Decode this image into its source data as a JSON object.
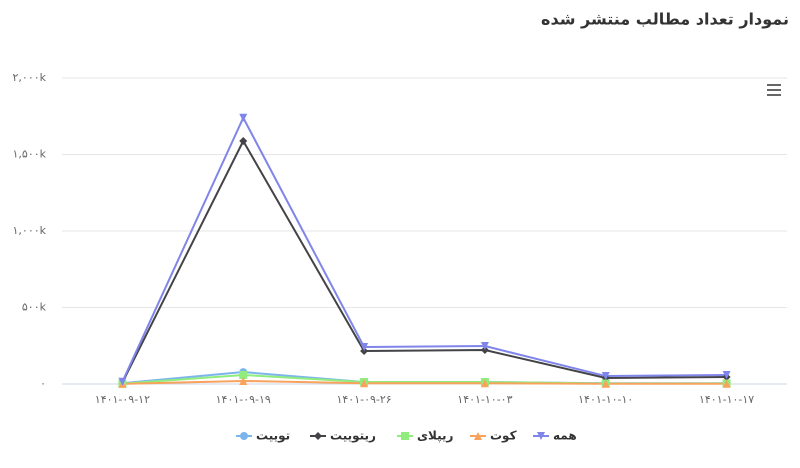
{
  "chart_data": {
    "type": "line",
    "title": "نمودار تعداد مطالب منتشر شده",
    "categories": [
      "۱۴۰۱-۰۹-۱۲",
      "۱۴۰۱-۰۹-۱۹",
      "۱۴۰۱-۰۹-۲۶",
      "۱۴۰۱-۱۰-۰۳",
      "۱۴۰۱-۱۰-۱۰",
      "۱۴۰۱-۱۰-۱۷"
    ],
    "series": [
      {
        "name": "توییت",
        "color": "#7cb5ec",
        "marker": "circle",
        "values": [
          5000,
          78000,
          13000,
          13000,
          5000,
          5000
        ]
      },
      {
        "name": "ریتوییت",
        "color": "#434348",
        "marker": "diamond",
        "values": [
          10000,
          1588000,
          216000,
          222000,
          39000,
          46000
        ]
      },
      {
        "name": "ریپلای",
        "color": "#90ed7d",
        "marker": "square",
        "values": [
          2000,
          59000,
          13000,
          13000,
          3000,
          3000
        ]
      },
      {
        "name": "کوت",
        "color": "#f7a35c",
        "marker": "triangle",
        "values": [
          1000,
          20000,
          5000,
          5000,
          2000,
          2000
        ]
      },
      {
        "name": "همه",
        "color": "#8085e9",
        "marker": "triangle-down",
        "values": [
          15000,
          1740000,
          242000,
          248000,
          52000,
          59000
        ]
      }
    ],
    "ylim": [
      0,
      2000000
    ],
    "yticks": [
      {
        "value": 0,
        "label": "۰"
      },
      {
        "value": 500000,
        "label": "۵۰۰k"
      },
      {
        "value": 1000000,
        "label": "۱,۰۰۰k"
      },
      {
        "value": 1500000,
        "label": "۱,۵۰۰k"
      },
      {
        "value": 2000000,
        "label": "۲,۰۰۰k"
      }
    ],
    "grid": true
  }
}
